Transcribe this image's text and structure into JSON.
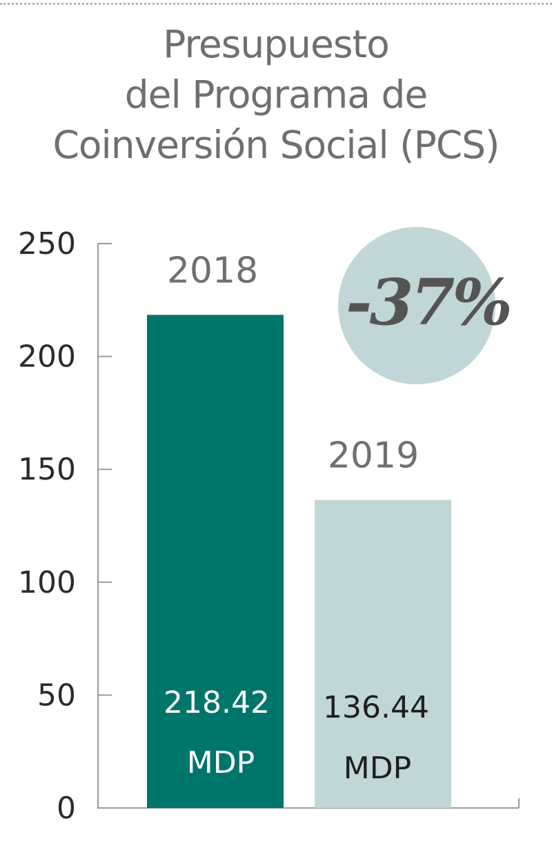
{
  "chart_data": {
    "type": "bar",
    "title_lines": [
      "Presupuesto",
      "del Programa de",
      "Coinversión Social (PCS)"
    ],
    "categories": [
      "2018",
      "2019"
    ],
    "values": [
      218.42,
      136.44
    ],
    "value_labels": [
      "218.42",
      "136.44"
    ],
    "unit": "MDP",
    "ylim": [
      0,
      250
    ],
    "yticks": [
      0,
      50,
      100,
      150,
      200,
      250
    ],
    "change_badge": "-37%",
    "colors": {
      "bar_2018": "#00756a",
      "bar_2019": "#c1d6d6",
      "badge": "#c1d6d6",
      "label_on_dark": "#ffffff",
      "label_on_light": "#1e1e1e"
    },
    "grid": false
  }
}
